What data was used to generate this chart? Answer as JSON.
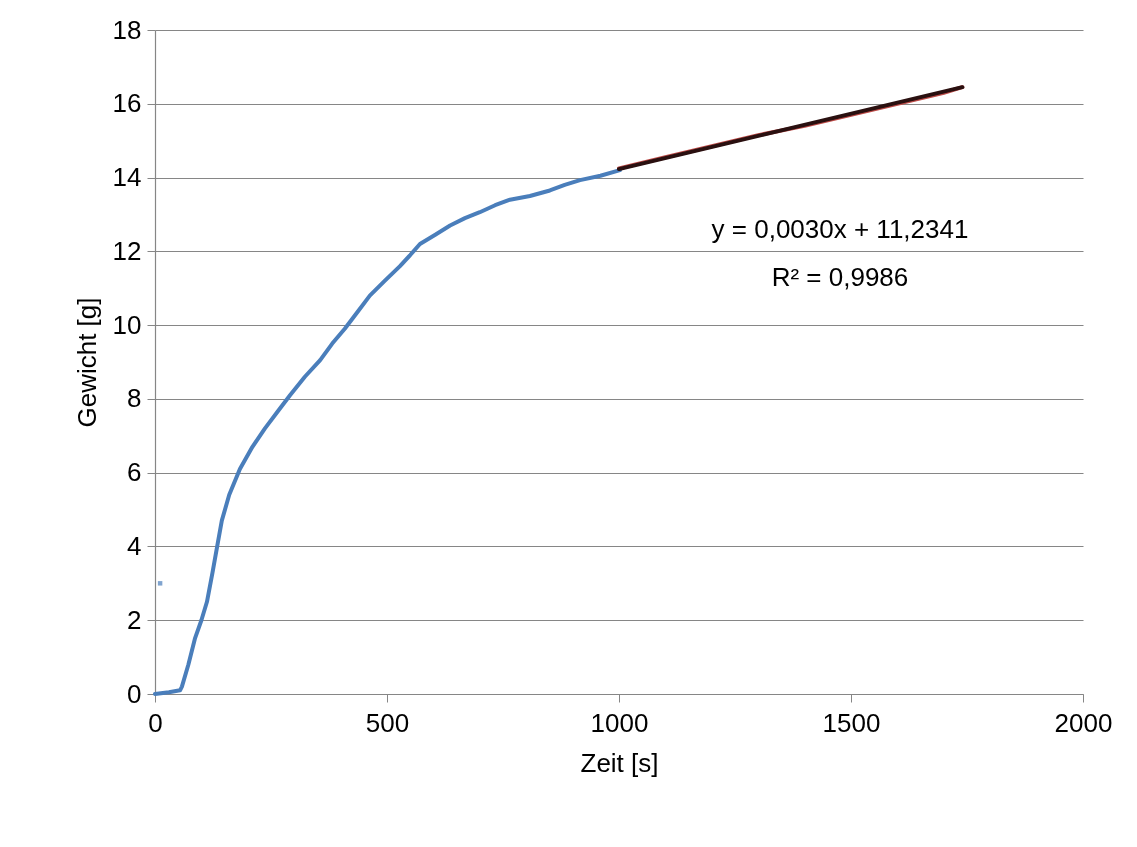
{
  "chart_data": {
    "type": "line",
    "xlabel": "Zeit [s]",
    "ylabel": "Gewicht [g]",
    "xlim": [
      0,
      2000
    ],
    "xticks": [
      0,
      500,
      1000,
      1500,
      2000
    ],
    "ylim": [
      0,
      18
    ],
    "yticks": [
      0,
      2,
      4,
      6,
      8,
      10,
      12,
      14,
      16,
      18
    ],
    "grid": "y",
    "annotations": [
      "y = 0,0030x + 11,2341",
      "R² = 0,9986"
    ],
    "series": [
      {
        "color": "#4a7ebb",
        "x": [
          0,
          30,
          54,
          58,
          72,
          86,
          100,
          112,
          124,
          134,
          144,
          160,
          183,
          210,
          237,
          264,
          291,
          323,
          356,
          382,
          409,
          436,
          463,
          495,
          528,
          550,
          571,
          604,
          636,
          668,
          700,
          733,
          765,
          808,
          851,
          883,
          916,
          960,
          1002
        ],
        "values": [
          0,
          0.05,
          0.1,
          0.2,
          0.8,
          1.5,
          2.0,
          2.5,
          3.3,
          4.0,
          4.7,
          5.4,
          6.1,
          6.7,
          7.2,
          7.65,
          8.1,
          8.6,
          9.05,
          9.5,
          9.9,
          10.35,
          10.8,
          11.2,
          11.6,
          11.9,
          12.2,
          12.45,
          12.7,
          12.9,
          13.06,
          13.25,
          13.4,
          13.5,
          13.65,
          13.8,
          13.93,
          14.05,
          14.2
        ]
      },
      {
        "type": "scatter",
        "marker": "square",
        "color": "#4a7ebb",
        "x": [
          11
        ],
        "values": [
          3.0
        ]
      },
      {
        "color": "#be4b48",
        "x": [
          1000,
          1100,
          1200,
          1300,
          1400,
          1500,
          1600,
          1700,
          1740
        ],
        "values": [
          14.25,
          14.55,
          14.85,
          15.15,
          15.4,
          15.7,
          16.0,
          16.3,
          16.45
        ]
      },
      {
        "color": "#2a1010",
        "x": [
          1000,
          1740
        ],
        "values": [
          14.23,
          16.45
        ]
      }
    ]
  }
}
